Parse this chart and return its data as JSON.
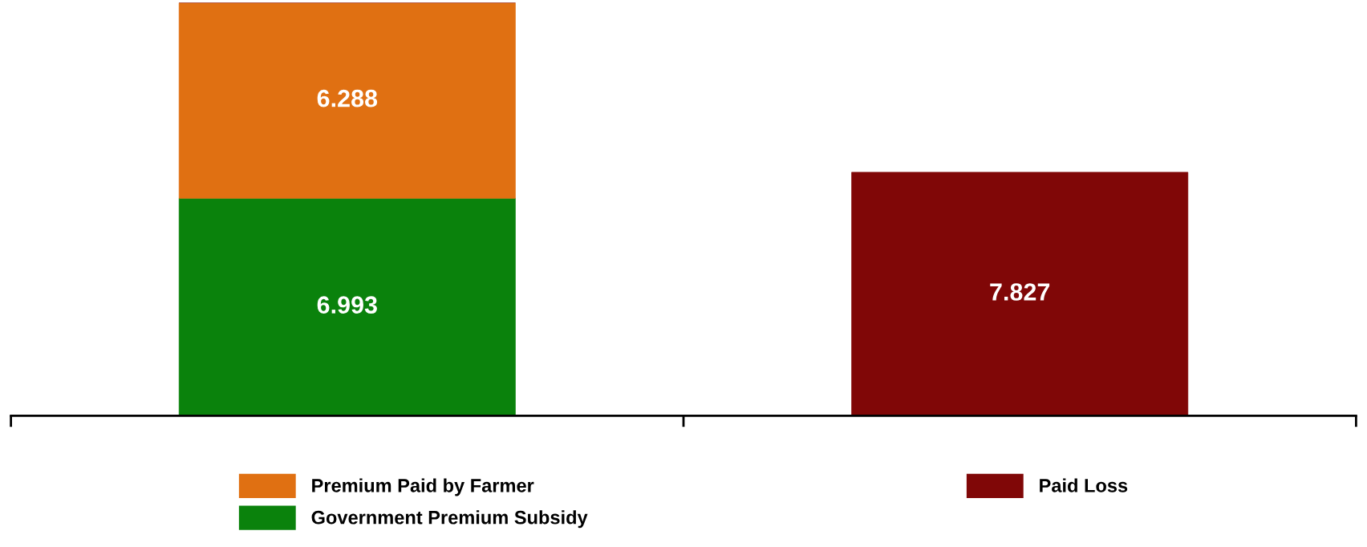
{
  "chart_data": {
    "type": "bar",
    "stacked": true,
    "categories": [
      null,
      null
    ],
    "series": [
      {
        "name": "Government Premium Subsidy",
        "color": "#0a820c",
        "values": [
          6.993,
          null
        ]
      },
      {
        "name": "Premium Paid by Farmer",
        "color": "#e07012",
        "values": [
          6.288,
          null
        ]
      },
      {
        "name": "Paid Loss",
        "color": "#800707",
        "values": [
          null,
          7.827
        ]
      }
    ],
    "data_labels": true,
    "legend": "bottom",
    "grid": false
  }
}
